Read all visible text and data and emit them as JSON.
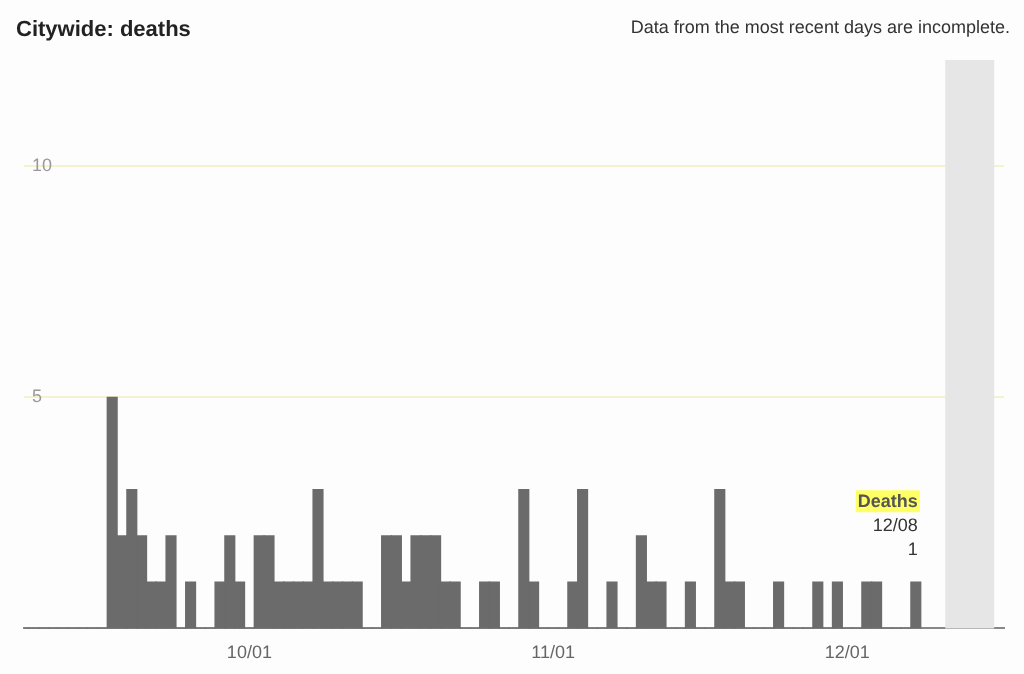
{
  "chart_data": {
    "type": "bar",
    "title": "Citywide: deaths",
    "annotations": [
      "Data from the most recent days are incomplete.",
      {
        "text": "12/08",
        "x": "--12-08",
        "y": 1
      }
    ],
    "x": [
      "--09-08",
      "--09-09",
      "--09-10",
      "--09-11",
      "--09-12",
      "--09-13",
      "--09-14",
      "--09-15",
      "--09-16",
      "--09-17",
      "--09-18",
      "--09-19",
      "--09-20",
      "--09-21",
      "--09-22",
      "--09-23",
      "--09-24",
      "--09-25",
      "--09-26",
      "--09-27",
      "--09-28",
      "--09-29",
      "--09-30",
      "--10-01",
      "--10-02",
      "--10-03",
      "--10-04",
      "--10-05",
      "--10-06",
      "--10-07",
      "--10-08",
      "--10-09",
      "--10-10",
      "--10-11",
      "--10-12",
      "--10-13",
      "--10-14",
      "--10-15",
      "--10-16",
      "--10-17",
      "--10-18",
      "--10-19",
      "--10-20",
      "--10-21",
      "--10-22",
      "--10-23",
      "--10-24",
      "--10-25",
      "--10-26",
      "--10-27",
      "--10-28",
      "--10-29",
      "--10-30",
      "--10-31",
      "--11-01",
      "--11-02",
      "--11-03",
      "--11-04",
      "--11-05",
      "--11-06",
      "--11-07",
      "--11-08",
      "--11-09",
      "--11-10",
      "--11-11",
      "--11-12",
      "--11-13",
      "--11-14",
      "--11-15",
      "--11-16",
      "--11-17",
      "--11-18",
      "--11-19",
      "--11-20",
      "--11-21",
      "--11-22",
      "--11-23",
      "--11-24",
      "--11-25",
      "--11-26",
      "--11-27",
      "--11-28",
      "--11-29",
      "--11-30",
      "--12-01",
      "--12-02",
      "--12-03",
      "--12-04",
      "--12-05",
      "--12-06",
      "--12-07",
      "--12-08"
    ],
    "series": [
      {
        "name": "Deaths",
        "color": "#6b6b6b",
        "values": [
          0,
          0,
          0,
          0,
          0,
          0,
          0,
          0,
          0,
          5,
          2,
          3,
          2,
          1,
          1,
          2,
          0,
          1,
          0,
          0,
          1,
          2,
          1,
          0,
          2,
          2,
          1,
          1,
          1,
          1,
          3,
          1,
          1,
          1,
          1,
          0,
          0,
          2,
          2,
          1,
          2,
          2,
          2,
          1,
          1,
          0,
          0,
          1,
          1,
          0,
          0,
          3,
          1,
          0,
          0,
          0,
          1,
          3,
          0,
          0,
          1,
          0,
          0,
          2,
          1,
          1,
          0,
          0,
          1,
          0,
          0,
          3,
          1,
          1,
          0,
          0,
          0,
          1,
          0,
          0,
          0,
          1,
          0,
          1,
          0,
          0,
          1,
          1,
          0,
          0,
          0,
          1
        ],
        "value_labels": [
          null,
          null,
          null,
          null,
          null,
          null,
          null,
          null,
          null,
          null,
          null,
          null,
          null,
          null,
          null,
          null,
          null,
          null,
          null,
          null,
          null,
          null,
          null,
          null,
          null,
          null,
          null,
          null,
          null,
          null,
          null,
          null,
          null,
          null,
          null,
          null,
          null,
          null,
          null,
          null,
          null,
          null,
          null,
          null,
          null,
          null,
          null,
          null,
          null,
          null,
          null,
          null,
          null,
          null,
          null,
          null,
          null,
          null,
          null,
          null,
          null,
          null,
          null,
          null,
          null,
          null,
          null,
          null,
          null,
          null,
          null,
          null,
          null,
          null,
          null,
          null,
          null,
          null,
          null,
          null,
          null,
          null,
          null,
          null,
          null,
          null,
          null,
          null,
          null,
          null,
          null,
          "1"
        ]
      }
    ],
    "xlim": [
      "--09-08",
      "--12-17"
    ],
    "xticks": [
      {
        "value": "--10-01",
        "label": "10/01"
      },
      {
        "value": "--11-01",
        "label": "11/01"
      },
      {
        "value": "--12-01",
        "label": "12/01"
      }
    ],
    "ylim": [
      0,
      12.3
    ],
    "yticks": [
      5,
      10
    ],
    "grid": "y",
    "bands": [
      {
        "axis": "x",
        "from": "--12-11",
        "to": "--12-16",
        "color": "#e6e6e6"
      }
    ]
  }
}
